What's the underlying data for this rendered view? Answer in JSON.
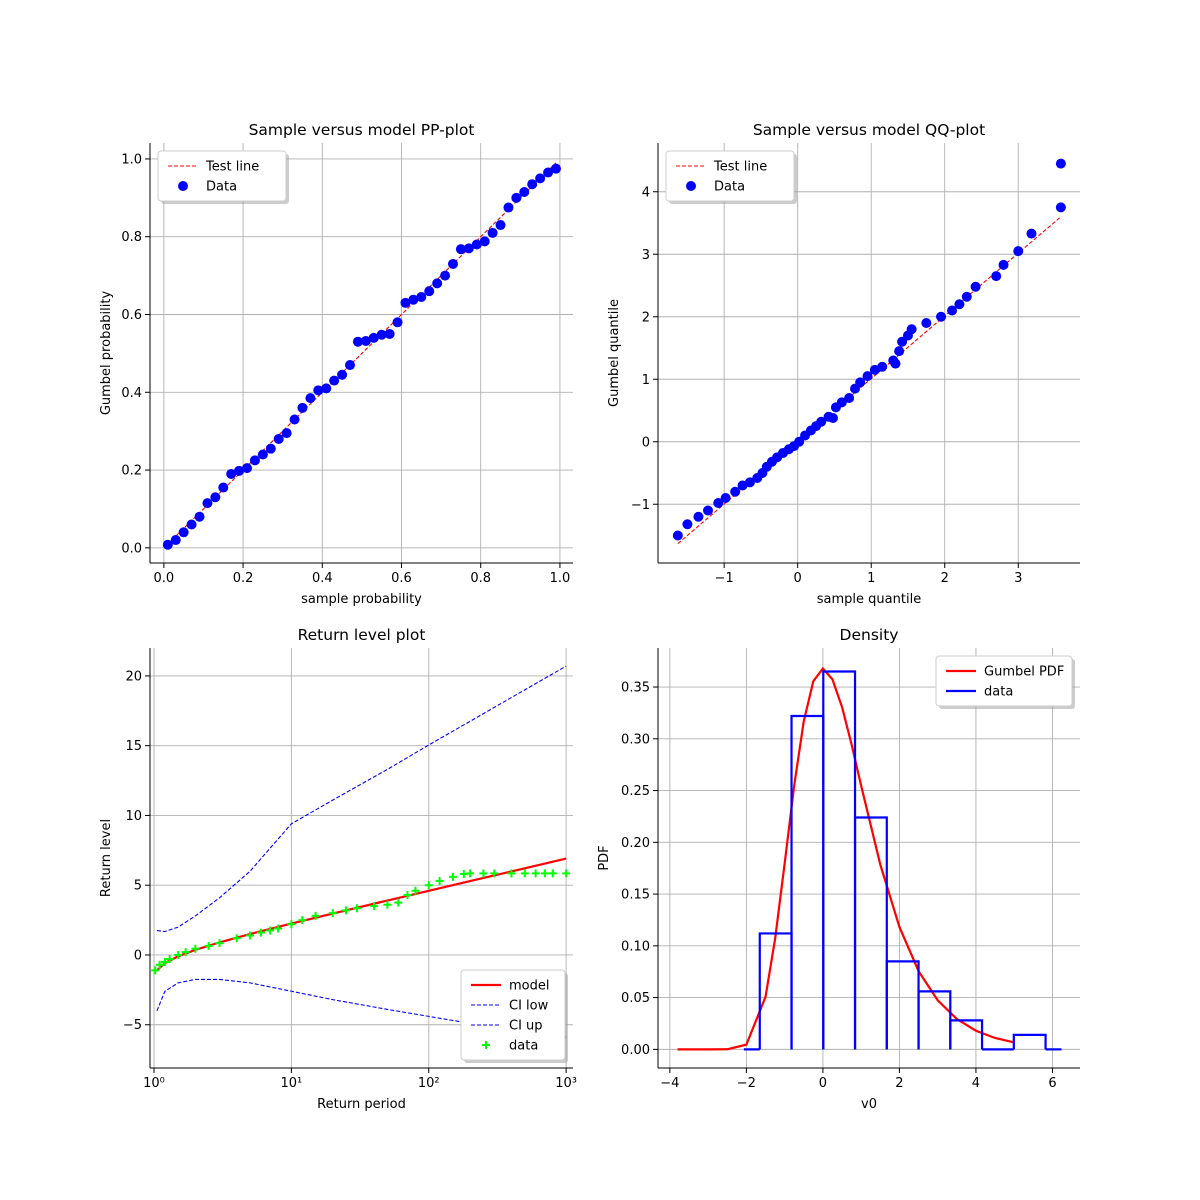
{
  "chart_data": [
    {
      "type": "scatter",
      "title": "Sample versus model PP-plot",
      "xlabel": "sample probability",
      "ylabel": "Gumbel probability",
      "xlim": [
        -0.035,
        1.033
      ],
      "ylim": [
        -0.039,
        1.041
      ],
      "xticks": [
        {
          "value": 0,
          "label": "0.0"
        },
        0.2,
        0.4,
        0.6,
        0.8,
        {
          "value": 1,
          "label": "1.0"
        }
      ],
      "yticks": [
        {
          "value": 0,
          "label": "0.0"
        },
        0.2,
        0.4,
        0.6,
        0.8,
        {
          "value": 1,
          "label": "1.0"
        }
      ],
      "grid": true,
      "legend": "upper left",
      "series": [
        {
          "name": "Test line",
          "color": "#ff0000",
          "style": "dashed",
          "x": [
            0.01,
            0.99
          ],
          "values": [
            0.01,
            0.99
          ]
        },
        {
          "name": "Data",
          "color": "#0000ff",
          "style": "marker",
          "x": [
            0.01,
            0.03,
            0.05,
            0.07,
            0.09,
            0.11,
            0.13,
            0.15,
            0.17,
            0.19,
            0.21,
            0.23,
            0.25,
            0.27,
            0.29,
            0.31,
            0.33,
            0.35,
            0.37,
            0.39,
            0.41,
            0.43,
            0.45,
            0.47,
            0.49,
            0.51,
            0.53,
            0.55,
            0.57,
            0.59,
            0.61,
            0.63,
            0.65,
            0.67,
            0.69,
            0.71,
            0.73,
            0.75,
            0.77,
            0.79,
            0.81,
            0.83,
            0.85,
            0.87,
            0.89,
            0.91,
            0.93,
            0.95,
            0.97,
            0.99
          ],
          "values": [
            0.008,
            0.02,
            0.04,
            0.06,
            0.08,
            0.115,
            0.13,
            0.155,
            0.19,
            0.198,
            0.205,
            0.225,
            0.24,
            0.255,
            0.28,
            0.295,
            0.33,
            0.36,
            0.385,
            0.405,
            0.41,
            0.43,
            0.445,
            0.47,
            0.53,
            0.532,
            0.54,
            0.548,
            0.55,
            0.58,
            0.63,
            0.638,
            0.645,
            0.66,
            0.68,
            0.7,
            0.73,
            0.768,
            0.77,
            0.78,
            0.788,
            0.81,
            0.83,
            0.875,
            0.9,
            0.915,
            0.935,
            0.95,
            0.965,
            0.975
          ]
        }
      ]
    },
    {
      "type": "scatter",
      "title": "Sample versus model QQ-plot",
      "xlabel": "sample quantile",
      "ylabel": "Gumbel quantile",
      "xlim": [
        -1.9,
        3.84
      ],
      "ylim": [
        -1.94,
        4.78
      ],
      "xticks": [
        {
          "value": -1,
          "label": "−1"
        },
        0,
        1,
        2,
        3
      ],
      "yticks": [
        {
          "value": -1,
          "label": "−1"
        },
        0,
        1,
        2,
        3,
        4
      ],
      "grid": true,
      "legend": "upper left",
      "series": [
        {
          "name": "Test line",
          "color": "#ff0000",
          "style": "dashed",
          "x": [
            -1.63,
            3.58
          ],
          "values": [
            -1.63,
            3.6
          ]
        },
        {
          "name": "Data",
          "color": "#0000ff",
          "style": "marker",
          "x": [
            -1.63,
            -1.5,
            -1.35,
            -1.22,
            -1.08,
            -0.98,
            -0.85,
            -0.75,
            -0.65,
            -0.55,
            -0.48,
            -0.42,
            -0.35,
            -0.28,
            -0.2,
            -0.12,
            -0.05,
            0.02,
            0.1,
            0.18,
            0.25,
            0.32,
            0.42,
            0.48,
            0.52,
            0.6,
            0.7,
            0.78,
            0.85,
            0.95,
            1.05,
            1.15,
            1.3,
            1.33,
            1.38,
            1.42,
            1.5,
            1.55,
            1.75,
            1.95,
            2.1,
            2.2,
            2.3,
            2.42,
            2.7,
            2.8,
            3.0,
            3.18,
            3.58,
            3.58
          ],
          "values": [
            -1.5,
            -1.32,
            -1.2,
            -1.1,
            -0.98,
            -0.9,
            -0.8,
            -0.7,
            -0.65,
            -0.58,
            -0.5,
            -0.4,
            -0.32,
            -0.25,
            -0.18,
            -0.12,
            -0.07,
            0.0,
            0.1,
            0.18,
            0.25,
            0.32,
            0.4,
            0.38,
            0.55,
            0.63,
            0.7,
            0.85,
            0.95,
            1.05,
            1.15,
            1.2,
            1.3,
            1.25,
            1.45,
            1.6,
            1.7,
            1.8,
            1.9,
            2.0,
            2.1,
            2.2,
            2.32,
            2.48,
            2.65,
            2.83,
            3.05,
            3.33,
            3.75,
            4.45
          ]
        }
      ]
    },
    {
      "type": "line",
      "title": "Return level plot",
      "xlabel": "Return period",
      "ylabel": "Return level",
      "xscale": "log",
      "xlim": [
        0.935,
        1122
      ],
      "ylim": [
        -8.1,
        22.0
      ],
      "xticks": [
        {
          "value": 1,
          "label": "10⁰"
        },
        {
          "value": 10,
          "label": "10¹"
        },
        {
          "value": 100,
          "label": "10²"
        },
        {
          "value": 1000,
          "label": "10³"
        }
      ],
      "yticks": [
        {
          "value": -5,
          "label": "−5"
        },
        0,
        5,
        10,
        15,
        20
      ],
      "grid": true,
      "legend": "lower right",
      "series": [
        {
          "name": "model",
          "color": "#ff0000",
          "style": "line",
          "x": [
            1.05,
            1.2,
            1.5,
            2,
            3,
            5,
            10,
            20,
            50,
            100,
            200,
            500,
            1000
          ],
          "values": [
            -1.11,
            -0.583,
            -0.094,
            0.367,
            0.903,
            1.5,
            2.25,
            2.97,
            3.902,
            4.6,
            5.296,
            6.214,
            6.907
          ]
        },
        {
          "name": "CI low",
          "color": "#0000ff",
          "style": "dashed",
          "x": [
            1.05,
            1.2,
            1.5,
            2,
            3,
            5,
            10,
            20,
            50,
            100,
            200,
            500,
            1000
          ],
          "values": [
            -4.0,
            -2.6,
            -2.0,
            -1.75,
            -1.75,
            -2.0,
            -2.6,
            -3.2,
            -3.9,
            -4.4,
            -4.9,
            -5.5,
            -5.9
          ]
        },
        {
          "name": "CI up",
          "color": "#0000ff",
          "style": "dashed",
          "x": [
            1.05,
            1.2,
            1.5,
            2,
            3,
            5,
            10,
            20,
            50,
            100,
            200,
            500,
            1000
          ],
          "values": [
            1.75,
            1.68,
            2.0,
            2.8,
            4.1,
            6.0,
            9.4,
            11.1,
            13.3,
            15.05,
            16.75,
            19.0,
            20.7
          ]
        },
        {
          "name": "data",
          "color": "#00ff00",
          "style": "plus",
          "x": [
            1.02,
            1.1,
            1.2,
            1.3,
            1.5,
            1.7,
            2,
            2.5,
            3,
            4,
            5,
            6,
            7,
            8,
            10,
            12,
            15,
            20,
            25,
            30,
            40,
            50,
            60,
            70,
            80,
            100,
            120,
            150,
            180,
            200,
            250,
            300,
            400,
            500,
            600,
            700,
            800,
            1000
          ],
          "values": [
            -1.1,
            -0.7,
            -0.5,
            -0.3,
            0.0,
            0.2,
            0.45,
            0.65,
            0.85,
            1.2,
            1.4,
            1.6,
            1.75,
            1.9,
            2.2,
            2.5,
            2.8,
            3.0,
            3.2,
            3.35,
            3.5,
            3.6,
            3.75,
            4.3,
            4.6,
            5.0,
            5.3,
            5.6,
            5.8,
            5.85,
            5.85,
            5.85,
            5.85,
            5.85,
            5.85,
            5.85,
            5.85,
            5.85
          ]
        }
      ]
    },
    {
      "type": "histogram",
      "title": "Density",
      "xlabel": "v0",
      "ylabel": "PDF",
      "xlim": [
        -4.31,
        6.72
      ],
      "ylim": [
        -0.018,
        0.3877
      ],
      "xticks": [
        {
          "value": -4,
          "label": "−4"
        },
        {
          "value": -2,
          "label": "−2"
        },
        0,
        2,
        4,
        6
      ],
      "yticks": [
        {
          "value": 0,
          "label": "0.00"
        },
        {
          "value": 0.05,
          "label": "0.05"
        },
        {
          "value": 0.1,
          "label": "0.10"
        },
        {
          "value": 0.15,
          "label": "0.15"
        },
        {
          "value": 0.2,
          "label": "0.20"
        },
        {
          "value": 0.25,
          "label": "0.25"
        },
        {
          "value": 0.3,
          "label": "0.30"
        },
        {
          "value": 0.35,
          "label": "0.35"
        }
      ],
      "grid": true,
      "legend": "upper right",
      "series": [
        {
          "name": "Gumbel PDF",
          "color": "#ff0000",
          "style": "line",
          "x": [
            -3.8,
            -3,
            -2.5,
            -2,
            -1.5,
            -1.25,
            -1,
            -0.75,
            -0.5,
            -0.25,
            0,
            0.25,
            0.5,
            0.75,
            1,
            1.5,
            2,
            2.5,
            3,
            3.5,
            4,
            4.5,
            5
          ],
          "values": [
            0,
            0,
            0.0001,
            0.00457,
            0.0507,
            0.1065,
            0.1794,
            0.2549,
            0.317,
            0.3556,
            0.3679,
            0.3574,
            0.3307,
            0.2945,
            0.2546,
            0.1785,
            0.1182,
            0.0756,
            0.0474,
            0.0293,
            0.01799,
            0.01099,
            0.0067
          ]
        },
        {
          "name": "data",
          "color": "#0000ff",
          "style": "steps",
          "bins": [
            -1.65,
            -0.82,
            0.01,
            0.84,
            1.67,
            2.5,
            3.33,
            4.16,
            4.99,
            5.82
          ],
          "values": [
            0.112,
            0.322,
            0.365,
            0.224,
            0.085,
            0.056,
            0.028,
            0,
            0.014
          ]
        }
      ]
    }
  ]
}
